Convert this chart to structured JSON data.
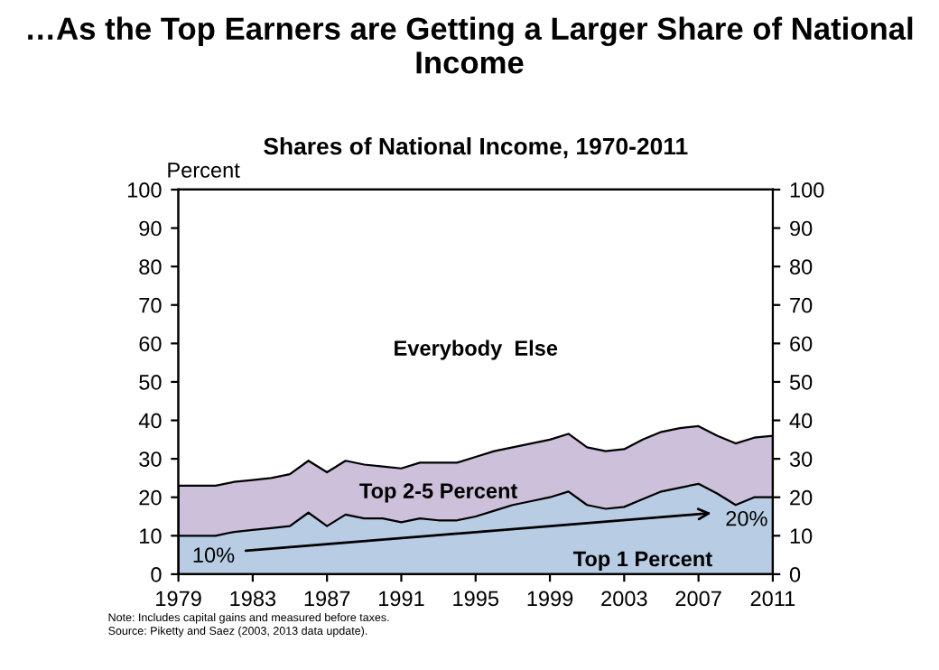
{
  "chart_data": {
    "type": "area",
    "stacked": true,
    "title": "…As the Top Earners are Getting a Larger Share of National Income",
    "subtitle": "Shares of National Income, 1970-2011",
    "ylabel": "Percent",
    "x": [
      1979,
      1980,
      1981,
      1982,
      1983,
      1984,
      1985,
      1986,
      1987,
      1988,
      1989,
      1990,
      1991,
      1992,
      1993,
      1994,
      1995,
      1996,
      1997,
      1998,
      1999,
      2000,
      2001,
      2002,
      2003,
      2004,
      2005,
      2006,
      2007,
      2008,
      2009,
      2010,
      2011
    ],
    "series": [
      {
        "name": "Top 1 Percent",
        "color": "#b8cce4",
        "values": [
          10,
          10,
          10,
          11,
          11.5,
          12,
          12.5,
          16,
          12.5,
          15.5,
          14.5,
          14.5,
          13.5,
          14.5,
          14,
          14,
          15,
          16.5,
          18,
          19,
          20,
          21.5,
          18,
          17,
          17.5,
          19.5,
          21.5,
          22.5,
          23.5,
          21,
          18,
          20,
          20
        ]
      },
      {
        "name": "Top 2-5 Percent",
        "color": "#ccc0da",
        "values": [
          13,
          13,
          13,
          13,
          13,
          13,
          13.5,
          13.5,
          14,
          14,
          14,
          13.5,
          14,
          14.5,
          15,
          15,
          15.5,
          15.5,
          15,
          15,
          15,
          15,
          15,
          15,
          15,
          15.5,
          15.5,
          15.5,
          15,
          15,
          16,
          15.5,
          16
        ]
      },
      {
        "name": "Everybody  Else",
        "color": "#ffffff",
        "values": [
          77,
          77,
          77,
          76,
          75.5,
          75,
          74,
          70.5,
          73.5,
          70.5,
          71.5,
          72,
          72.5,
          71,
          71,
          71,
          69.5,
          68,
          67,
          66,
          65,
          63.5,
          67,
          68,
          67.5,
          65,
          63,
          62,
          61.5,
          64,
          66,
          64.5,
          64
        ]
      }
    ],
    "xlim": [
      1979,
      2011
    ],
    "xticks": [
      1979,
      1983,
      1987,
      1991,
      1995,
      1999,
      2003,
      2007,
      2011
    ],
    "ylim": [
      0,
      100
    ],
    "yticks": [
      0,
      10,
      20,
      30,
      40,
      50,
      60,
      70,
      80,
      90,
      100
    ],
    "y2lim": [
      0,
      100
    ],
    "y2ticks": [
      0,
      10,
      20,
      30,
      40,
      50,
      60,
      70,
      80,
      90,
      100
    ],
    "grid": false,
    "legend": false,
    "annotations": [
      "10%",
      "20%",
      "Note: Includes capital gains and measured before taxes.",
      "Source: Piketty and Saez (2003, 2013 data update)."
    ]
  }
}
